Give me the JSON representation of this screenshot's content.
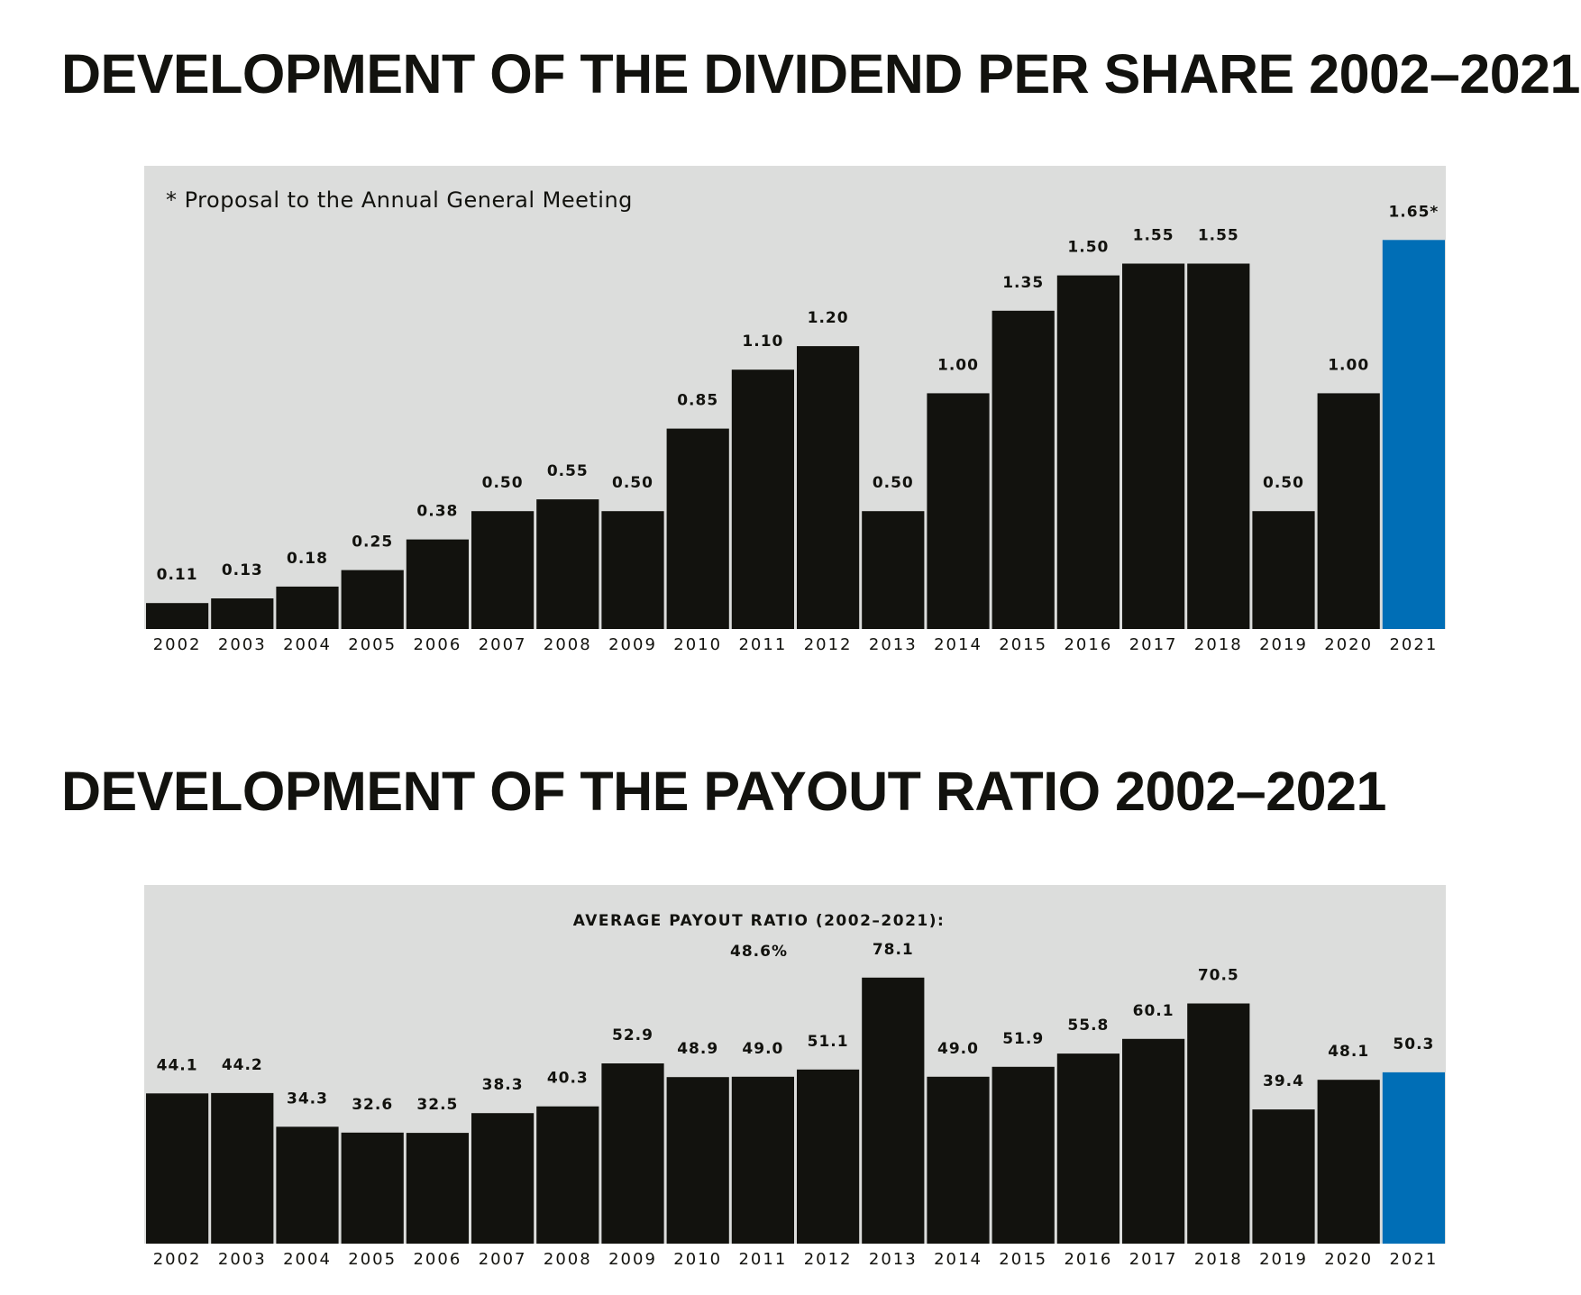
{
  "chart_data": [
    {
      "type": "bar",
      "title": "DEVELOPMENT OF THE DIVIDEND PER SHARE 2002–2021",
      "note": "* Proposal to the Annual General Meeting",
      "categories": [
        "2002",
        "2003",
        "2004",
        "2005",
        "2006",
        "2007",
        "2008",
        "2009",
        "2010",
        "2011",
        "2012",
        "2013",
        "2014",
        "2015",
        "2016",
        "2017",
        "2018",
        "2019",
        "2020",
        "2021"
      ],
      "values": [
        0.11,
        0.13,
        0.18,
        0.25,
        0.38,
        0.5,
        0.55,
        0.5,
        0.85,
        1.1,
        1.2,
        0.5,
        1.0,
        1.35,
        1.5,
        1.55,
        1.55,
        0.5,
        1.0,
        1.65
      ],
      "labels": [
        "0.11",
        "0.13",
        "0.18",
        "0.25",
        "0.38",
        "0.50",
        "0.55",
        "0.50",
        "0.85",
        "1.10",
        "1.20",
        "0.50",
        "1.00",
        "1.35",
        "1.50",
        "1.55",
        "1.55",
        "0.50",
        "1.00",
        "1.65*"
      ],
      "highlight_index": 19,
      "colors": {
        "bar": "#12120e",
        "highlight": "#006eb6",
        "background": "#dcdddc"
      },
      "ylim": [
        0,
        1.85
      ],
      "grid": false
    },
    {
      "type": "bar",
      "title": "DEVELOPMENT OF THE PAYOUT RATIO 2002–2021",
      "average_label": "AVERAGE PAYOUT RATIO (2002–2021):",
      "average_value": "48.6%",
      "categories": [
        "2002",
        "2003",
        "2004",
        "2005",
        "2006",
        "2007",
        "2008",
        "2009",
        "2010",
        "2011",
        "2012",
        "2013",
        "2014",
        "2015",
        "2016",
        "2017",
        "2018",
        "2019",
        "2020",
        "2021"
      ],
      "values": [
        44.1,
        44.2,
        34.3,
        32.6,
        32.5,
        38.3,
        40.3,
        52.9,
        48.9,
        49.0,
        51.1,
        78.1,
        49.0,
        51.9,
        55.8,
        60.1,
        70.5,
        39.4,
        48.1,
        50.3
      ],
      "labels": [
        "44.1",
        "44.2",
        "34.3",
        "32.6",
        "32.5",
        "38.3",
        "40.3",
        "52.9",
        "48.9",
        "49.0",
        "51.1",
        "78.1",
        "49.0",
        "51.9",
        "55.8",
        "60.1",
        "70.5",
        "39.4",
        "48.1",
        "50.3"
      ],
      "highlight_index": 19,
      "colors": {
        "bar": "#12120e",
        "highlight": "#006eb6",
        "background": "#dcdddc"
      },
      "ylim": [
        0,
        100
      ],
      "grid": false
    }
  ]
}
